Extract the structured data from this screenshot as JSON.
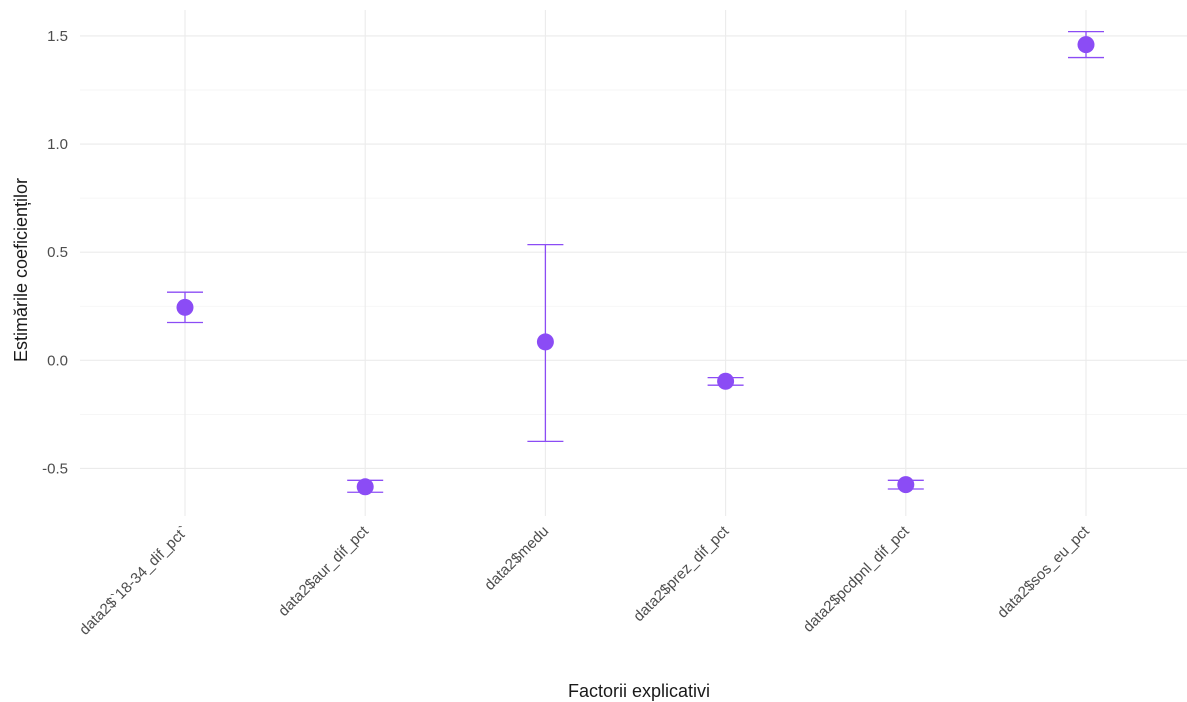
{
  "chart_data": {
    "type": "scatter",
    "title": "",
    "xlabel": "Factorii explicativi",
    "ylabel": "Estimările coeficienților",
    "categories": [
      "data2$`18-34_dif_pct`",
      "data2$aur_dif_pct",
      "data2$medu",
      "data2$prez_dif_pct",
      "data2$pcdpnl_dif_pct",
      "data2$sos_eu_pct"
    ],
    "series": [
      {
        "estimates": [
          0.245,
          -0.585,
          0.085,
          -0.097,
          -0.575,
          1.46
        ],
        "lower": [
          0.175,
          -0.61,
          -0.375,
          -0.115,
          -0.595,
          1.4
        ],
        "upper": [
          0.315,
          -0.555,
          0.535,
          -0.08,
          -0.555,
          1.52
        ]
      }
    ],
    "ylim": [
      -0.72,
      1.62
    ],
    "yticks": [
      -0.5,
      0.0,
      0.5,
      1.0,
      1.5
    ],
    "ytick_labels": [
      "-0.5",
      "0.0",
      "0.5",
      "1.0",
      "1.5"
    ],
    "grid": true,
    "color": "#8b4cf5"
  }
}
